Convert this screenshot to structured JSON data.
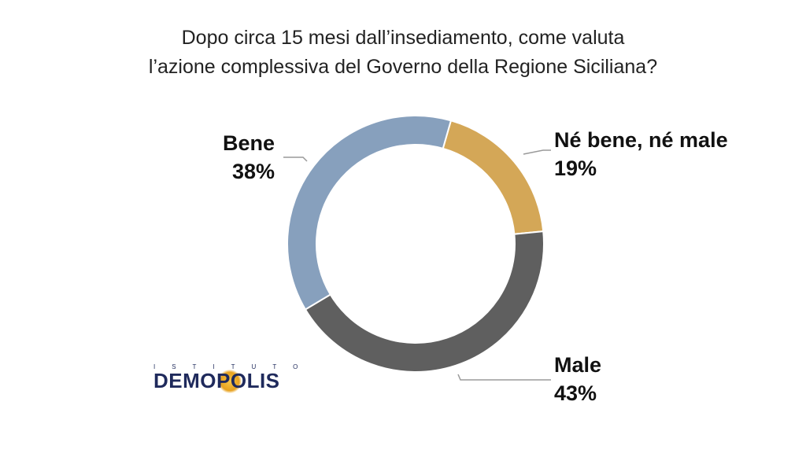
{
  "chart_data": {
    "type": "pie",
    "variant": "donut",
    "title_lines": [
      "Dopo circa 15 mesi dall’insediamento, come valuta",
      "l’azione complessiva del Governo della Regione Siciliana?"
    ],
    "slices": [
      {
        "label": "Né bene, né male",
        "value": 19,
        "value_label": "19%",
        "color": "#d4a757"
      },
      {
        "label": "Male",
        "value": 43,
        "value_label": "43%",
        "color": "#5f5f5f"
      },
      {
        "label": "Bene",
        "value": 38,
        "value_label": "38%",
        "color": "#87a0bd"
      }
    ],
    "start_angle_deg": 16,
    "direction": "clockwise"
  },
  "logo": {
    "top_text": "ISTITUTO",
    "main_text": "DEMOPOLIS",
    "main_before_sun": "DEM",
    "main_sun_letter": "O",
    "main_after_sun": "POLIS",
    "colors": {
      "text": "#1f2a5c",
      "sun": "#e8a21f"
    }
  }
}
